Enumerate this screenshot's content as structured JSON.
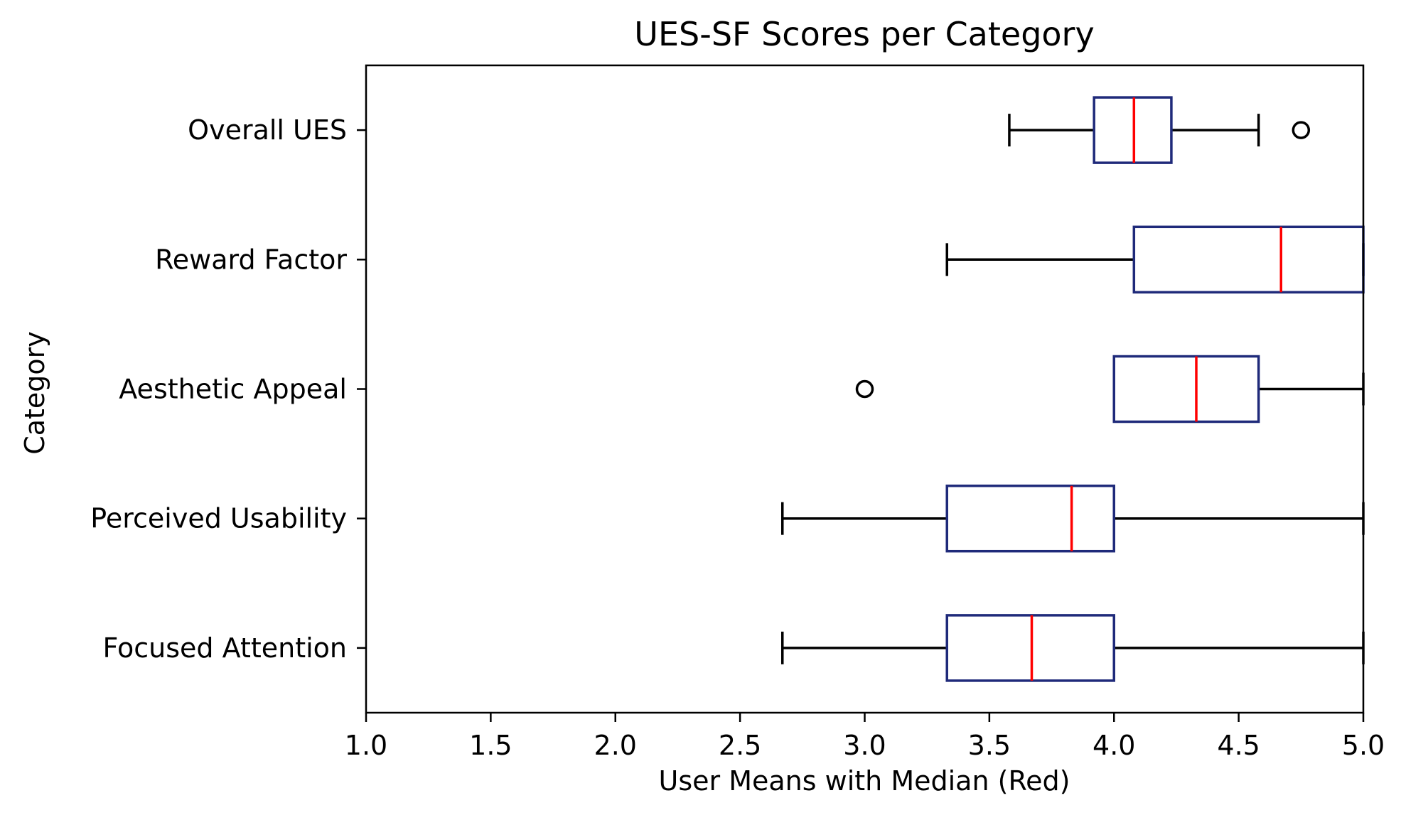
{
  "chart_data": {
    "type": "boxplot",
    "orientation": "horizontal",
    "title": "UES-SF Scores per Category",
    "xlabel": "User Means with Median (Red)",
    "ylabel": "Category",
    "xlim": [
      1.0,
      5.0
    ],
    "xticks": [
      1.0,
      1.5,
      2.0,
      2.5,
      3.0,
      3.5,
      4.0,
      4.5,
      5.0
    ],
    "xtick_labels": [
      "1.0",
      "1.5",
      "2.0",
      "2.5",
      "3.0",
      "3.5",
      "4.0",
      "4.5",
      "5.0"
    ],
    "grid": false,
    "colors": {
      "box": "#1f2a7a",
      "median": "#ff0000",
      "whisker": "#000000",
      "flier": "#000000"
    },
    "categories": [
      {
        "name": "Overall UES",
        "whislo": 3.58,
        "q1": 3.92,
        "median": 4.08,
        "q3": 4.23,
        "whishi": 4.58,
        "fliers": [
          4.75
        ]
      },
      {
        "name": "Reward Factor",
        "whislo": 3.33,
        "q1": 4.08,
        "median": 4.67,
        "q3": 5.0,
        "whishi": 5.0,
        "fliers": []
      },
      {
        "name": "Aesthetic Appeal",
        "whislo": 4.0,
        "q1": 4.0,
        "median": 4.33,
        "q3": 4.58,
        "whishi": 5.0,
        "fliers": [
          3.0
        ]
      },
      {
        "name": "Perceived Usability",
        "whislo": 2.67,
        "q1": 3.33,
        "median": 3.83,
        "q3": 4.0,
        "whishi": 5.0,
        "fliers": []
      },
      {
        "name": "Focused Attention",
        "whislo": 2.67,
        "q1": 3.33,
        "median": 3.67,
        "q3": 4.0,
        "whishi": 5.0,
        "fliers": []
      }
    ]
  }
}
